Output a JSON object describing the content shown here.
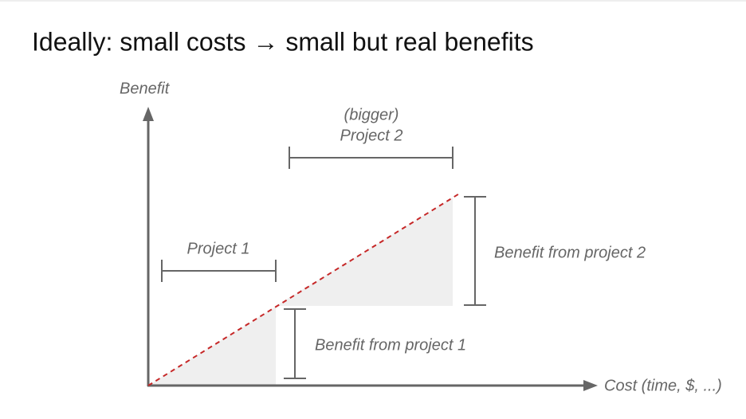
{
  "title": "Ideally: small costs → small but real benefits",
  "axes": {
    "y_label": "Benefit",
    "x_label": "Cost (time, $, ...)"
  },
  "annotations": {
    "project_1": "Project 1",
    "project_2_qualifier": "(bigger)",
    "project_2": "Project 2",
    "benefit_1": "Benefit from project 1",
    "benefit_2": "Benefit from project 2"
  }
}
